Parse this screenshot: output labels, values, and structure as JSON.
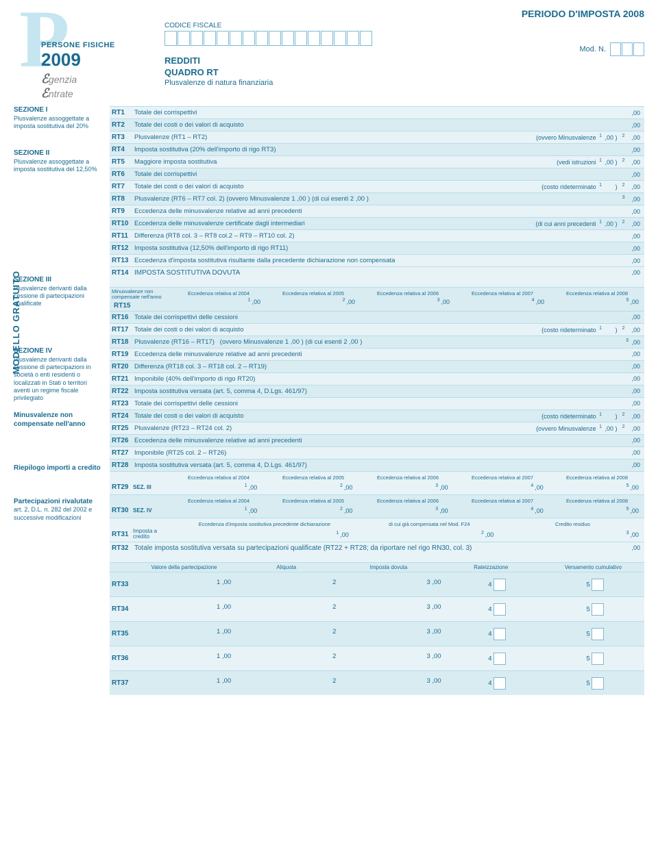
{
  "colors": {
    "primary": "#1a6b8f",
    "row_alt1": "#e8f3f7",
    "row_alt2": "#d9ecf2",
    "border": "#b8dde8",
    "logo_bg": "#c5e5f0"
  },
  "header": {
    "period": "PERIODO D'IMPOSTA 2008",
    "codice_fiscale_label": "CODICE FISCALE",
    "pf_line": "PERSONE FISICHE",
    "year": "2009",
    "agenzia": "genzia",
    "agenzia2": "ntrate",
    "redditi": "REDDITI",
    "quadro": "QUADRO RT",
    "subtitle": "Plusvalenze di natura finanziaria",
    "modn": "Mod. N.",
    "cf_box_count": 16,
    "modn_box_count": 3
  },
  "vert": "MODELLO GRATUITO",
  "sections": {
    "s1": {
      "title": "SEZIONE I",
      "desc": "Plusvalenze assoggettate a imposta sostitutiva del 20%"
    },
    "s2": {
      "title": "SEZIONE II",
      "desc": "Plusvalenze assoggettate a imposta sostitutiva del 12,50%"
    },
    "s3": {
      "title": "SEZIONE III",
      "desc": "Plusvalenze derivanti dalla cessione di partecipazioni qualificate"
    },
    "s4": {
      "title": "SEZIONE IV",
      "desc": "Plusvalenze derivanti dalla cessione di partecipazioni in società o enti residenti o localizzati in Stati o territori aventi un regime fiscale privilegiato"
    },
    "s5": {
      "title": "Minusvalenze non compensate nell'anno"
    },
    "s6": {
      "title": "Riepilogo importi a credito"
    },
    "s7": {
      "title": "Partecipazioni rivalutate",
      "desc": "art. 2, D.L. n. 282 del 2002 e successive modificazioni"
    }
  },
  "rows": {
    "rt1": {
      "code": "RT1",
      "desc": "Totale dei corrispettivi",
      "tail": ",00"
    },
    "rt2": {
      "code": "RT2",
      "desc": "Totale dei costi o dei valori di acquisto",
      "tail": ",00"
    },
    "rt3": {
      "code": "RT3",
      "desc": "Plusvalenze (RT1 – RT2)",
      "mid": "(ovvero Minusvalenze",
      "tail1": ",00 )",
      "tail2": ",00"
    },
    "rt4": {
      "code": "RT4",
      "desc": "Imposta sostitutiva (20% dell'importo di rigo RT3)",
      "tail": ",00"
    },
    "rt5": {
      "code": "RT5",
      "desc": "Maggiore imposta sostitutiva",
      "mid": "(vedi istruzioni",
      "tail1": ",00 )",
      "tail2": ",00"
    },
    "rt6": {
      "code": "RT6",
      "desc": "Totale dei corrispettivi",
      "tail": ",00"
    },
    "rt7": {
      "code": "RT7",
      "desc": "Totale dei costi o dei valori di acquisto",
      "mid": "(costo rideterminato",
      "tail1": ")",
      "tail2": ",00"
    },
    "rt8": {
      "code": "RT8",
      "desc": "Plusvalenze (RT6 – RT7 col. 2) (ovvero Minusvalenze",
      "mid1": ",00 )  (di cui esenti",
      "tail1": ",00 )",
      "tail2": ",00"
    },
    "rt9": {
      "code": "RT9",
      "desc": "Eccedenza delle minusvalenze relative ad anni precedenti",
      "tail": ",00"
    },
    "rt10": {
      "code": "RT10",
      "desc": "Eccedenza delle minusvalenze certificate dagli intermediari",
      "mid": "(di cui anni precedenti",
      "tail1": ",00 )",
      "tail2": ",00"
    },
    "rt11": {
      "code": "RT11",
      "desc": "Differenza (RT8 col. 3 – RT8 col.2 – RT9 – RT10 col. 2)",
      "tail": ",00"
    },
    "rt12": {
      "code": "RT12",
      "desc": "Imposta sostitutiva (12,50% dell'importo di rigo RT11)",
      "tail": ",00"
    },
    "rt13": {
      "code": "RT13",
      "desc": "Eccedenza d'imposta sostitutiva risultante dalla precedente dichiarazione non compensata",
      "tail": ",00"
    },
    "rt14": {
      "code": "RT14",
      "desc": "IMPOSTA SOSTITUTIVA DOVUTA",
      "tail": ",00"
    },
    "rt15": {
      "code": "RT15",
      "left": "Minusvalenze non compensate nell'anno",
      "ecc": [
        "Eccedenza relativa al 2004",
        "Eccedenza relativa al 2005",
        "Eccedenza relativa al 2006",
        "Eccedenza relativa al 2007",
        "Eccedenza relativa al 2008"
      ],
      "vals": [
        ",00",
        ",00",
        ",00",
        ",00",
        ",00"
      ]
    },
    "rt16": {
      "code": "RT16",
      "desc": "Totale dei corrispettivi delle cessioni",
      "tail": ",00"
    },
    "rt17": {
      "code": "RT17",
      "desc": "Totale dei costi o dei valori di acquisto",
      "mid": "(costo rideterminato",
      "tail1": ")",
      "tail2": ",00"
    },
    "rt18": {
      "code": "RT18",
      "desc": "Plusvalenze (RT16 – RT17)",
      "mid": "(ovvero Minusvalenze",
      "mid1": ",00 )  (di cui esenti",
      "tail1": ",00 )",
      "tail2": ",00"
    },
    "rt19": {
      "code": "RT19",
      "desc": "Eccedenza delle minusvalenze relative ad anni precedenti",
      "tail": ",00"
    },
    "rt20": {
      "code": "RT20",
      "desc": "Differenza (RT18 col. 3 – RT18 col. 2 – RT19)",
      "tail": ",00"
    },
    "rt21": {
      "code": "RT21",
      "desc": "Imponibile (40% dell'importo di rigo RT20)",
      "tail": ",00"
    },
    "rt22": {
      "code": "RT22",
      "desc": "Imposta sostitutiva versata (art. 5, comma 4, D.Lgs. 461/97)",
      "tail": ",00"
    },
    "rt23": {
      "code": "RT23",
      "desc": "Totale dei corrispettivi delle cessioni",
      "tail": ",00"
    },
    "rt24": {
      "code": "RT24",
      "desc": "Totale dei costi o dei valori di acquisto",
      "mid": "(costo rideterminato",
      "tail1": ")",
      "tail2": ",00"
    },
    "rt25": {
      "code": "RT25",
      "desc": "Plusvalenze (RT23 – RT24 col. 2)",
      "mid": "(ovvero Minusvalenze",
      "tail1": ",00 )",
      "tail2": ",00"
    },
    "rt26": {
      "code": "RT26",
      "desc": "Eccedenza delle minusvalenze relative ad anni precedenti",
      "tail": ",00"
    },
    "rt27": {
      "code": "RT27",
      "desc": "Imponibile (RT25 col. 2 – RT26)",
      "tail": ",00"
    },
    "rt28": {
      "code": "RT28",
      "desc": "Imposta sostitutiva versata (art. 5, comma 4, D.Lgs. 461/97)",
      "tail": ",00"
    },
    "rt29": {
      "code": "RT29",
      "left": "SEZ. III",
      "ecc": [
        "Eccedenza relativa al 2004",
        "Eccedenza relativa al 2005",
        "Eccedenza relativa al 2006",
        "Eccedenza relativa al 2007",
        "Eccedenza relativa al 2008"
      ],
      "vals": [
        ",00",
        ",00",
        ",00",
        ",00",
        ",00"
      ]
    },
    "rt30": {
      "code": "RT30",
      "left": "SEZ. IV",
      "ecc": [
        "Eccedenza relativa al 2004",
        "Eccedenza relativa al 2005",
        "Eccedenza relativa al 2006",
        "Eccedenza relativa al 2007",
        "Eccedenza relativa al 2008"
      ],
      "vals": [
        ",00",
        ",00",
        ",00",
        ",00",
        ",00"
      ]
    },
    "rt31": {
      "code": "RT31",
      "left": "Imposta a credito",
      "h1": "Eccedenza d'imposta sostitutiva precedente dichiarazione",
      "h2": "di cui già compensata nel Mod. F24",
      "h3": "Credito residuo",
      "vals": [
        ",00",
        ",00",
        ",00"
      ]
    },
    "rt32": {
      "code": "RT32",
      "desc": "Totale imposta sostitutiva versata su partecipazioni qualificate (RT22 + RT28; da riportare nel rigo RN30, col. 3)",
      "tail": ",00"
    },
    "part_headers": [
      "Valore della partecipazione",
      "Aliquota",
      "Imposta dovuta",
      "Rateizzazione",
      "Versamento cumulativo"
    ],
    "rt33": {
      "code": "RT33",
      "vals": [
        ",00",
        "",
        ",00",
        "",
        ""
      ]
    },
    "rt34": {
      "code": "RT34",
      "vals": [
        ",00",
        "",
        ",00",
        "",
        ""
      ]
    },
    "rt35": {
      "code": "RT35",
      "vals": [
        ",00",
        "",
        ",00",
        "",
        ""
      ]
    },
    "rt36": {
      "code": "RT36",
      "vals": [
        ",00",
        "",
        ",00",
        "",
        ""
      ]
    },
    "rt37": {
      "code": "RT37",
      "vals": [
        ",00",
        "",
        ",00",
        "",
        ""
      ]
    }
  }
}
